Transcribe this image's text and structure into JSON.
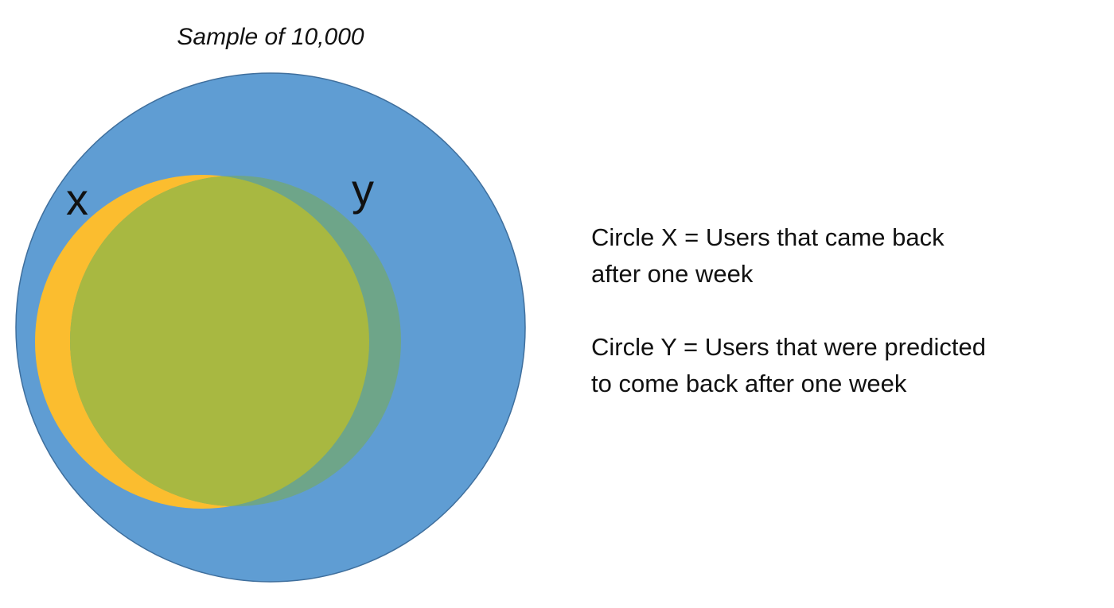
{
  "diagram": {
    "title": "Sample of 10,000",
    "colors": {
      "outer": "#5f9dd3",
      "circle_x": "#fbbd2f",
      "circle_y": "#6ea589",
      "overlap": "#a8b841",
      "text": "#111111"
    },
    "labels": {
      "x": "x",
      "y": "y"
    }
  },
  "legend": {
    "entries": [
      {
        "line1": "Circle X = Users that came back",
        "line2": "after one week"
      },
      {
        "line1": "Circle Y = Users that were predicted",
        "line2": "to come back after one week"
      }
    ]
  }
}
